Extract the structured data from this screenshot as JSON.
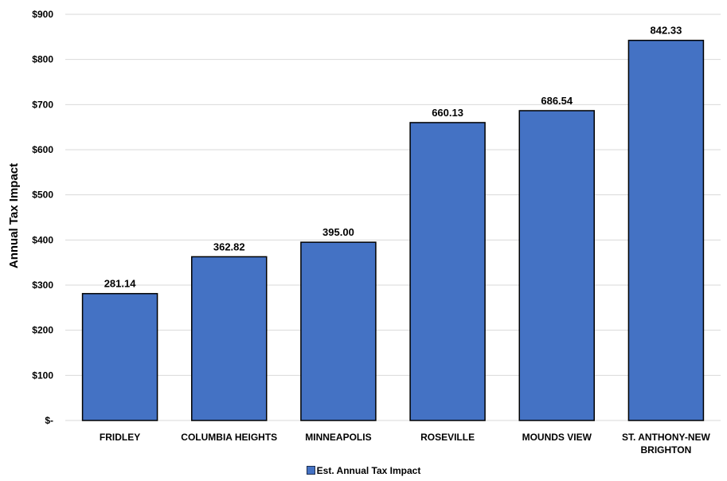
{
  "chart_data": {
    "type": "bar",
    "title": "",
    "xlabel": "",
    "ylabel": "Annual Tax Impact",
    "categories": [
      "FRIDLEY",
      "COLUMBIA HEIGHTS",
      "MINNEAPOLIS",
      "ROSEVILLE",
      "MOUNDS VIEW",
      "ST. ANTHONY-NEW BRIGHTON"
    ],
    "category_lines": [
      [
        "FRIDLEY"
      ],
      [
        "COLUMBIA HEIGHTS"
      ],
      [
        "MINNEAPOLIS"
      ],
      [
        "ROSEVILLE"
      ],
      [
        "MOUNDS VIEW"
      ],
      [
        "ST. ANTHONY-NEW",
        "BRIGHTON"
      ]
    ],
    "series": [
      {
        "name": "Est. Annual Tax Impact",
        "values": [
          281.14,
          362.82,
          395.0,
          660.13,
          686.54,
          842.33
        ],
        "data_labels": [
          "281.14",
          "362.82",
          "395.00",
          "660.13",
          "686.54",
          "842.33"
        ]
      }
    ],
    "ylim": [
      0,
      900
    ],
    "yticks": [
      0,
      100,
      200,
      300,
      400,
      500,
      600,
      700,
      800,
      900
    ],
    "ytick_labels": [
      "$-",
      "$100",
      "$200",
      "$300",
      "$400",
      "$500",
      "$600",
      "$700",
      "$800",
      "$900"
    ],
    "grid": true,
    "legend_position": "bottom",
    "colors": {
      "bar_fill": "#4472C4",
      "bar_stroke": "#000000",
      "gridline": "#D9D9D9"
    }
  }
}
